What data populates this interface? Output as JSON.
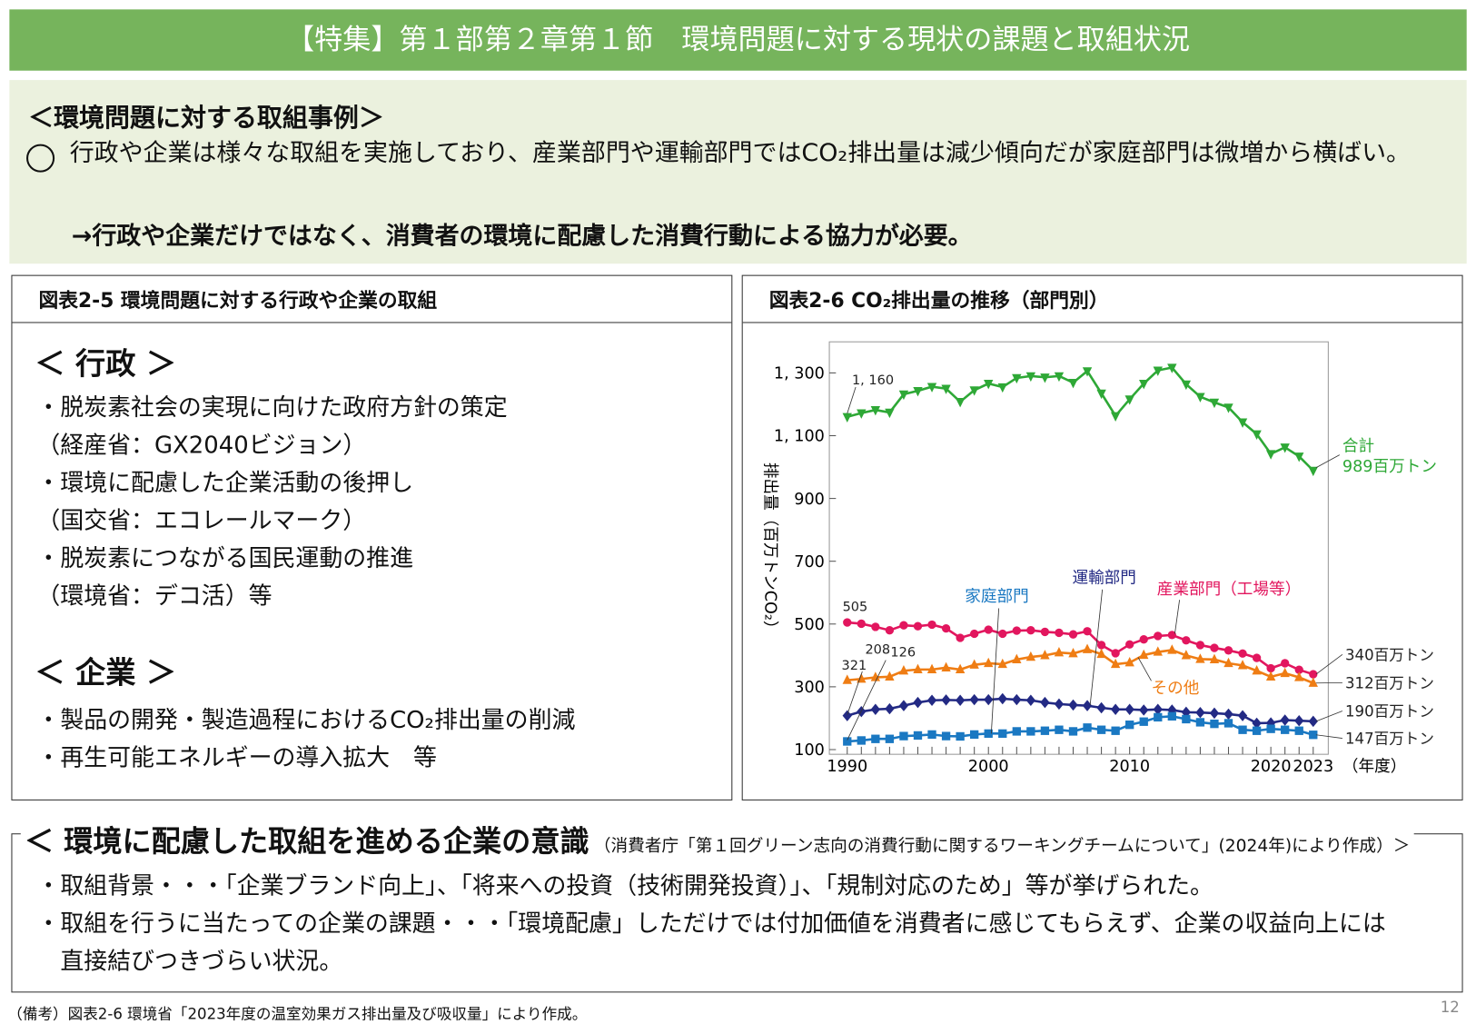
{
  "title": "【特集】第１部第２章第１節　環境問題に対する現状の課題と取組状況",
  "summary": {
    "heading": "＜環境問題に対する取組事例＞",
    "bullet_icon": "circle-bullet-icon",
    "point": "行政や企業は様々な取組を実施しており、産業部門や運輸部門ではCO₂排出量は減少傾向だが家庭部門は微増から横ばい。",
    "conclusion": "→行政や企業だけではなく、消費者の環境に配慮した消費行動による協力が必要。"
  },
  "left_panel": {
    "title": "図表2-5 環境問題に対する行政や企業の取組",
    "gov_heading": "＜ 行政 ＞",
    "gov_items": [
      "・脱炭素社会の実現に向けた政府方針の策定",
      "（経産省：GX2040ビジョン）",
      "・環境に配慮した企業活動の後押し",
      "（国交省：エコレールマーク）",
      "・脱炭素につながる国民運動の推進",
      "（環境省：デコ活）等"
    ],
    "biz_heading": "＜ 企業 ＞",
    "biz_items": [
      "・製品の開発・製造過程におけるCO₂排出量の削減",
      "・再生可能エネルギーの導入拡大　等"
    ]
  },
  "right_panel": {
    "title": "図表2-6 CO₂排出量の推移（部門別）"
  },
  "chart_data": {
    "type": "line",
    "title": "図表2-6 CO₂排出量の推移（部門別）",
    "ylabel": "排出量（百万トンCO₂）",
    "xlabel": "（年度）",
    "ylim": [
      100,
      1400
    ],
    "yticks": [
      100,
      300,
      500,
      700,
      900,
      1100,
      1300
    ],
    "ytick_labels": [
      "100",
      "300",
      "500",
      "700",
      "900",
      "1, 100",
      "1, 300"
    ],
    "xticks": [
      1990,
      2000,
      2010,
      2020,
      2023
    ],
    "grid": false,
    "x": [
      1990,
      1991,
      1992,
      1993,
      1994,
      1995,
      1996,
      1997,
      1998,
      1999,
      2000,
      2001,
      2002,
      2003,
      2004,
      2005,
      2006,
      2007,
      2008,
      2009,
      2010,
      2011,
      2012,
      2013,
      2014,
      2015,
      2016,
      2017,
      2018,
      2019,
      2020,
      2021,
      2022,
      2023
    ],
    "series": [
      {
        "name": "合計",
        "color": "#2ea836",
        "marker": "triangle-down",
        "start_label": "1, 160",
        "end_label": "989百万トン",
        "values": [
          1160,
          1172,
          1182,
          1174,
          1232,
          1243,
          1256,
          1250,
          1208,
          1245,
          1266,
          1255,
          1284,
          1290,
          1286,
          1290,
          1269,
          1306,
          1235,
          1163,
          1216,
          1266,
          1308,
          1317,
          1264,
          1224,
          1206,
          1190,
          1143,
          1105,
          1042,
          1063,
          1034,
          989
        ]
      },
      {
        "name": "産業部門（工場等）",
        "color": "#e2165e",
        "marker": "circle",
        "start_label": "505",
        "end_label": "340百万トン",
        "values": [
          505,
          501,
          491,
          480,
          496,
          493,
          498,
          486,
          456,
          469,
          482,
          469,
          479,
          480,
          475,
          472,
          467,
          477,
          433,
          407,
          435,
          451,
          462,
          465,
          448,
          433,
          424,
          416,
          406,
          392,
          359,
          375,
          354,
          340
        ]
      },
      {
        "name": "その他",
        "color": "#ef7d14",
        "marker": "triangle-up",
        "start_label": "321",
        "end_label": "312百万トン",
        "values": [
          321,
          325,
          330,
          332,
          351,
          355,
          355,
          361,
          355,
          370,
          375,
          372,
          387,
          395,
          400,
          409,
          406,
          419,
          404,
          372,
          377,
          401,
          411,
          417,
          400,
          388,
          387,
          375,
          368,
          351,
          332,
          343,
          330,
          312
        ]
      },
      {
        "name": "運輸部門",
        "color": "#232a84",
        "marker": "diamond",
        "start_label": "208",
        "end_label": "190百万トン",
        "values": [
          208,
          221,
          228,
          230,
          240,
          250,
          257,
          258,
          257,
          259,
          259,
          262,
          259,
          257,
          250,
          245,
          242,
          240,
          233,
          228,
          228,
          226,
          228,
          226,
          219,
          218,
          216,
          213,
          208,
          184,
          185,
          194,
          192,
          190
        ]
      },
      {
        "name": "家庭部門",
        "color": "#1a78c2",
        "marker": "square",
        "start_label": "126",
        "end_label": "147百万トン",
        "values": [
          126,
          129,
          134,
          134,
          143,
          145,
          148,
          143,
          142,
          148,
          151,
          151,
          158,
          158,
          160,
          163,
          158,
          170,
          163,
          160,
          179,
          189,
          203,
          206,
          197,
          187,
          182,
          184,
          163,
          160,
          166,
          163,
          160,
          147
        ]
      }
    ]
  },
  "lower": {
    "heading": "＜ 環境に配慮した取組を進める企業の意識",
    "source": "（消費者庁「第１回グリーン志向の消費行動に関するワーキングチームについて」(2024年)により作成）＞",
    "items": [
      "・取組背景・・・「企業ブランド向上」、「将来への投資（技術開発投資）」、「規制対応のため」等が挙げられた。",
      "・取組を行うに当たっての企業の課題・・・「環境配慮」しただけでは付加価値を消費者に感じてもらえず、企業の収益向上には",
      "　直接結びつきづらい状況。"
    ]
  },
  "footnote": "（備考）図表2-6 環境省「2023年度の温室効果ガス排出量及び吸収量」により作成。",
  "page_number": "12"
}
